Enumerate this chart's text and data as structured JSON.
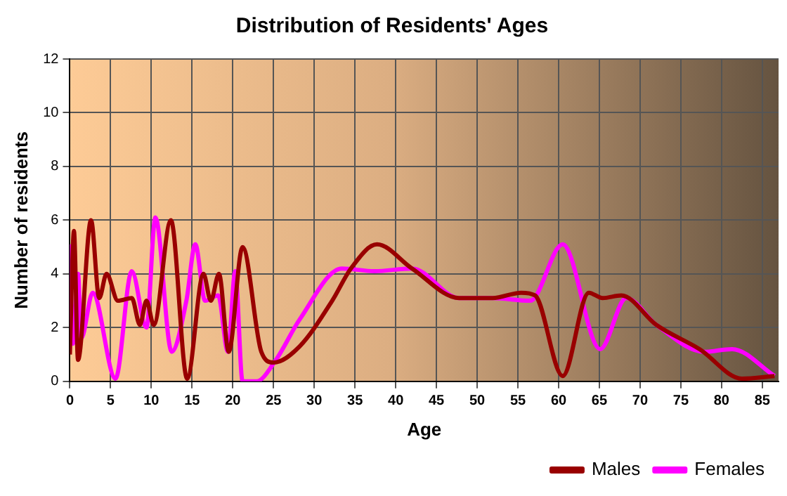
{
  "chart_data": {
    "type": "line",
    "title": "Distribution of Residents' Ages",
    "xlabel": "Age",
    "ylabel": "Number of residents",
    "xlim": [
      0,
      87
    ],
    "xticks": [
      0,
      5,
      10,
      15,
      20,
      25,
      30,
      35,
      40,
      45,
      50,
      55,
      60,
      65,
      70,
      75,
      80,
      85
    ],
    "ylim": [
      0,
      12
    ],
    "yticks": [
      0,
      2,
      4,
      6,
      8,
      10,
      12
    ],
    "grid": true,
    "legend": "bottom right",
    "marker": "none",
    "line_style": "solid",
    "series": [
      {
        "name": "Males",
        "color": "#990000",
        "x": [
          0,
          0.5,
          1,
          2.6,
          3.6,
          4.5,
          5.9,
          7.6,
          8.6,
          9.4,
          10.3,
          12.4,
          14.4,
          16.4,
          17.3,
          18.3,
          19.5,
          21.2,
          23.5,
          25,
          28.2,
          32.2,
          34.5,
          37.7,
          42,
          47.8,
          51.9,
          55.4,
          57.1,
          60.5,
          63.7,
          65.4,
          67.7,
          72,
          77.3,
          82.5,
          86.5
        ],
        "values": [
          1,
          5.6,
          0.8,
          6,
          3.1,
          4,
          3,
          3.1,
          2.1,
          3,
          2.1,
          6,
          0.1,
          4,
          3,
          4,
          1.1,
          5,
          1.1,
          0.7,
          1.3,
          3,
          4.2,
          5.1,
          4.2,
          3.1,
          3.1,
          3.3,
          3.2,
          0.2,
          3.3,
          3.1,
          3.2,
          2.1,
          1.2,
          0.1,
          0.2
        ]
      },
      {
        "name": "Females",
        "color": "#ff00ff",
        "x": [
          0,
          0.4,
          1,
          1.4,
          2.8,
          5.6,
          7.6,
          9.4,
          10.5,
          12.5,
          14.3,
          15.4,
          16.6,
          18.2,
          19.4,
          20.3,
          21.2,
          22.9,
          25.3,
          28.2,
          33.4,
          37.4,
          42,
          47.8,
          51.9,
          56.5,
          60.5,
          65.1,
          68.3,
          72,
          77.9,
          81.3,
          86.5
        ],
        "values": [
          5.1,
          1.4,
          4,
          1.6,
          3.3,
          0.1,
          4.1,
          2,
          6.1,
          1.1,
          3,
          5.1,
          3,
          3.2,
          1.1,
          4.1,
          0,
          0,
          0.8,
          2.3,
          4.2,
          4.1,
          4.2,
          3.1,
          3.1,
          3,
          5.1,
          1.2,
          3.1,
          2.1,
          1.1,
          1.2,
          0.2
        ]
      }
    ]
  }
}
